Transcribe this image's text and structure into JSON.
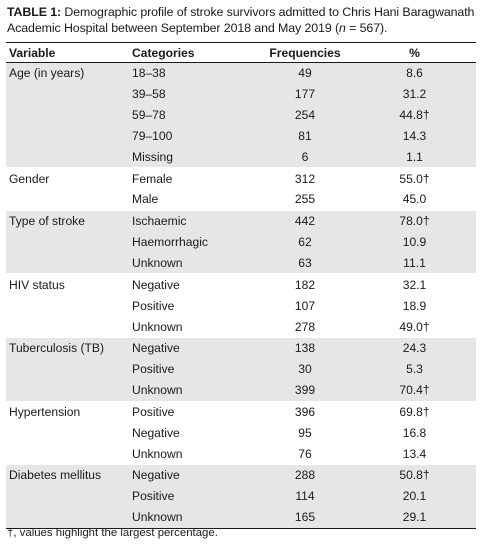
{
  "caption": {
    "label": "TABLE 1:",
    "text_before_n": " Demographic profile of stroke survivors admitted to Chris Hani Baragwanath Academic Hospital between September 2018 and May 2019 (",
    "n_symbol": "n",
    "text_after_n": " = 567)."
  },
  "table": {
    "headers": [
      "Variable",
      "Categories",
      "Frequencies",
      "%"
    ],
    "groups": [
      {
        "variable": "Age (in years)",
        "shaded": true,
        "rows": [
          {
            "category": "18–38",
            "frequency": "49",
            "percent": "8.6"
          },
          {
            "category": "39–58",
            "frequency": "177",
            "percent": "31.2"
          },
          {
            "category": "59–78",
            "frequency": "254",
            "percent": "44.8†"
          },
          {
            "category": "79–100",
            "frequency": "81",
            "percent": "14.3"
          },
          {
            "category": "Missing",
            "frequency": "6",
            "percent": "1.1"
          }
        ]
      },
      {
        "variable": "Gender",
        "shaded": false,
        "rows": [
          {
            "category": "Female",
            "frequency": "312",
            "percent": "55.0†"
          },
          {
            "category": "Male",
            "frequency": "255",
            "percent": "45.0"
          }
        ]
      },
      {
        "variable": "Type of stroke",
        "shaded": true,
        "rows": [
          {
            "category": "Ischaemic",
            "frequency": "442",
            "percent": "78.0†"
          },
          {
            "category": "Haemorrhagic",
            "frequency": "62",
            "percent": "10.9"
          },
          {
            "category": "Unknown",
            "frequency": "63",
            "percent": "11.1"
          }
        ]
      },
      {
        "variable": "HIV status",
        "shaded": false,
        "rows": [
          {
            "category": "Negative",
            "frequency": "182",
            "percent": "32.1"
          },
          {
            "category": "Positive",
            "frequency": "107",
            "percent": "18.9"
          },
          {
            "category": "Unknown",
            "frequency": "278",
            "percent": "49.0†"
          }
        ]
      },
      {
        "variable": "Tuberculosis (TB)",
        "shaded": true,
        "rows": [
          {
            "category": "Negative",
            "frequency": "138",
            "percent": "24.3"
          },
          {
            "category": "Positive",
            "frequency": "30",
            "percent": "5.3"
          },
          {
            "category": "Unknown",
            "frequency": "399",
            "percent": "70.4†"
          }
        ]
      },
      {
        "variable": "Hypertension",
        "shaded": false,
        "rows": [
          {
            "category": "Positive",
            "frequency": "396",
            "percent": "69.8†"
          },
          {
            "category": "Negative",
            "frequency": "95",
            "percent": "16.8"
          },
          {
            "category": "Unknown",
            "frequency": "76",
            "percent": "13.4"
          }
        ]
      },
      {
        "variable": "Diabetes mellitus",
        "shaded": true,
        "rows": [
          {
            "category": "Negative",
            "frequency": "288",
            "percent": "50.8†"
          },
          {
            "category": "Positive",
            "frequency": "114",
            "percent": "20.1"
          },
          {
            "category": "Unknown",
            "frequency": "165",
            "percent": "29.1"
          }
        ]
      }
    ]
  },
  "footnote": "†, values highlight the largest percentage.",
  "colors": {
    "shade": "#e6e6e6",
    "rule": "#1a1a1a",
    "text": "#1a1a1a"
  }
}
